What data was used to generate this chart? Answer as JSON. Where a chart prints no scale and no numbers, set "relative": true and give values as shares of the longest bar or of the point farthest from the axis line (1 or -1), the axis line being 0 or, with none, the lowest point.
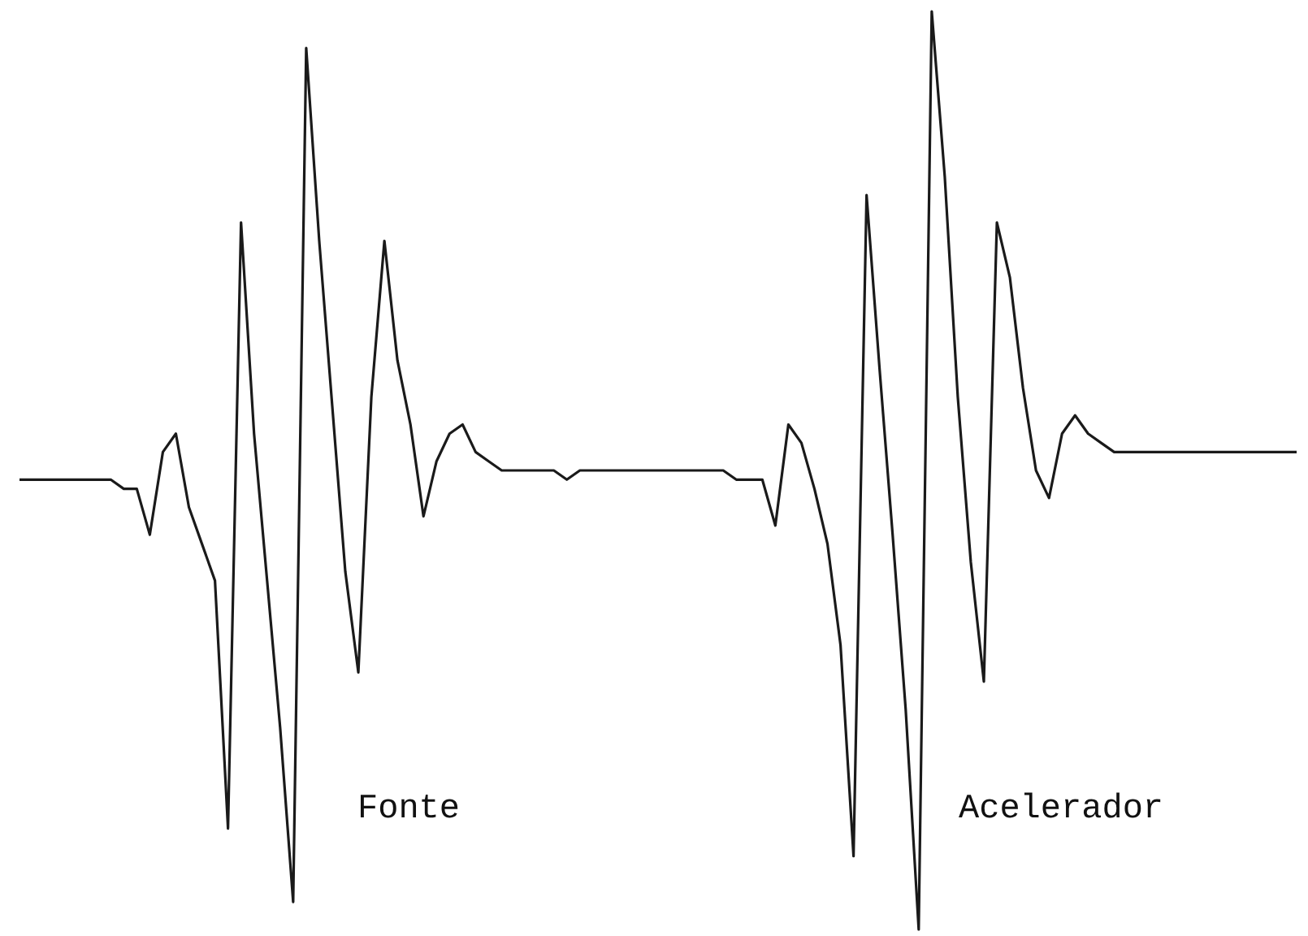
{
  "chart_data": {
    "type": "line",
    "relative": true,
    "color": "#1a1a1a",
    "marker": "none",
    "line_style": "solid",
    "categories": [
      null,
      null,
      null,
      null,
      null,
      null,
      null,
      null,
      null,
      null,
      null,
      null,
      null,
      null,
      null,
      null,
      null,
      null,
      null,
      null,
      null,
      null,
      null,
      null,
      null,
      null,
      null,
      null,
      null,
      null,
      null,
      null,
      null,
      null,
      null,
      null,
      null,
      null,
      null,
      null,
      null,
      null,
      null,
      null,
      null,
      null,
      null,
      null,
      null,
      null,
      null,
      null,
      null,
      null,
      null,
      null,
      null,
      null,
      null,
      null,
      null,
      null,
      null,
      null,
      null,
      null,
      null,
      null,
      null,
      null,
      null,
      null,
      null,
      null,
      null,
      null,
      null,
      null,
      null,
      null,
      null,
      null,
      null,
      null,
      null,
      null,
      null,
      null,
      null,
      null,
      null,
      null,
      null,
      null,
      null,
      null,
      null,
      null,
      null
    ],
    "values": [
      0.49,
      0.49,
      0.49,
      0.49,
      0.49,
      0.49,
      0.49,
      0.49,
      0.48,
      0.48,
      0.43,
      0.52,
      0.54,
      0.46,
      0.42,
      0.38,
      0.11,
      0.77,
      0.54,
      0.38,
      0.22,
      0.03,
      0.96,
      0.75,
      0.57,
      0.39,
      0.28,
      0.58,
      0.75,
      0.62,
      0.55,
      0.45,
      0.51,
      0.54,
      0.55,
      0.52,
      0.51,
      0.5,
      0.5,
      0.5,
      0.5,
      0.5,
      0.49,
      0.5,
      0.5,
      0.5,
      0.5,
      0.5,
      0.5,
      0.5,
      0.5,
      0.5,
      0.5,
      0.5,
      0.5,
      0.49,
      0.49,
      0.49,
      0.44,
      0.55,
      0.53,
      0.48,
      0.42,
      0.31,
      0.08,
      0.8,
      0.61,
      0.43,
      0.24,
      0,
      1,
      0.82,
      0.58,
      0.4,
      0.27,
      0.77,
      0.71,
      0.59,
      0.5,
      0.47,
      0.54,
      0.56,
      0.54,
      0.53,
      0.52,
      0.52,
      0.52,
      0.52,
      0.52,
      0.52,
      0.52,
      0.52,
      0.52,
      0.52,
      0.52,
      0.52,
      0.52,
      0.52,
      0.52
    ],
    "annotations": [
      "Fonte",
      "Acelerador"
    ]
  }
}
